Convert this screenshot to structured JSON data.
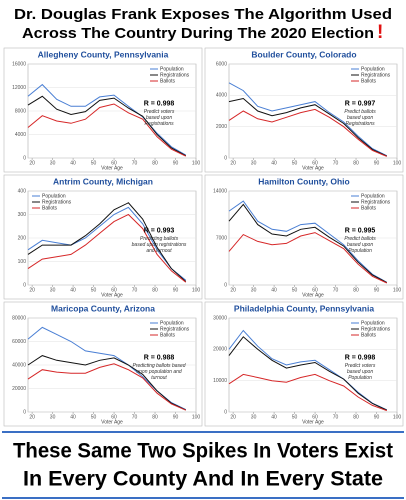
{
  "header": {
    "title_lines": [
      "Dr. Douglas Frank Exposes The Algorithm Used",
      "Across The Country During The 2020 Election"
    ],
    "exclamation": "!"
  },
  "footer": {
    "lines": [
      "These Same Two Spikes In Voters Exist",
      "In Every County And In Every State"
    ]
  },
  "chart_data": [
    {
      "type": "line",
      "title": "Allegheny County, Pennsylvania",
      "x_label": "Voter Age",
      "annotation": "R = 0.998",
      "note_lines": [
        "Predict voters",
        "based upon",
        "Registrations"
      ],
      "legend": "upper right",
      "x": [
        18,
        25,
        32,
        39,
        46,
        53,
        60,
        67,
        74,
        81,
        88,
        95
      ],
      "xlim": [
        18,
        100
      ],
      "xticks": [
        20,
        30,
        40,
        50,
        60,
        70,
        80,
        90,
        100
      ],
      "ylim": [
        0,
        16000
      ],
      "yticks": [
        0,
        4000,
        8000,
        12000,
        16000
      ],
      "series": [
        {
          "name": "Population",
          "color": "#4a7fd4",
          "values": [
            10500,
            12500,
            10000,
            8800,
            8800,
            10400,
            10700,
            8800,
            7000,
            4200,
            1900,
            500
          ]
        },
        {
          "name": "Registrations",
          "color": "#111111",
          "values": [
            9000,
            10500,
            8300,
            7400,
            7900,
            9800,
            10200,
            8500,
            7100,
            4000,
            1700,
            400
          ]
        },
        {
          "name": "Ballots",
          "color": "#d62728",
          "values": [
            5200,
            7200,
            6300,
            5900,
            6600,
            8600,
            9200,
            7700,
            6600,
            3600,
            1500,
            300
          ]
        }
      ]
    },
    {
      "type": "line",
      "title": "Boulder County, Colorado",
      "x_label": "Voter Age",
      "annotation": "R = 0.997",
      "note_lines": [
        "Predict ballots",
        "based upon",
        "Registrations"
      ],
      "legend": "upper right",
      "x": [
        18,
        25,
        32,
        39,
        46,
        53,
        60,
        67,
        74,
        81,
        88,
        95
      ],
      "xlim": [
        18,
        100
      ],
      "xticks": [
        20,
        30,
        40,
        50,
        60,
        70,
        80,
        90,
        100
      ],
      "ylim": [
        0,
        6000
      ],
      "yticks": [
        0,
        2000,
        4000,
        6000
      ],
      "series": [
        {
          "name": "Population",
          "color": "#4a7fd4",
          "values": [
            4800,
            4300,
            3300,
            3000,
            3200,
            3400,
            3600,
            2900,
            2300,
            1400,
            600,
            150
          ]
        },
        {
          "name": "Registrations",
          "color": "#111111",
          "values": [
            3600,
            3800,
            3000,
            2700,
            2900,
            3200,
            3400,
            2800,
            2200,
            1300,
            550,
            120
          ]
        },
        {
          "name": "Ballots",
          "color": "#d62728",
          "values": [
            2400,
            3000,
            2500,
            2300,
            2600,
            2900,
            3100,
            2600,
            2000,
            1200,
            480,
            100
          ]
        }
      ]
    },
    {
      "type": "line",
      "title": "Antrim County, Michigan",
      "x_label": "Voter Age",
      "annotation": "R = 0.993",
      "note_lines": [
        "Predicting ballots",
        "based upon registrations",
        "and turnout"
      ],
      "legend": "upper left",
      "x": [
        18,
        25,
        32,
        39,
        46,
        53,
        60,
        67,
        74,
        81,
        88,
        95
      ],
      "xlim": [
        18,
        100
      ],
      "xticks": [
        20,
        30,
        40,
        50,
        60,
        70,
        80,
        90,
        100
      ],
      "ylim": [
        0,
        400
      ],
      "yticks": [
        0,
        100,
        200,
        300,
        400
      ],
      "series": [
        {
          "name": "Population",
          "color": "#4a7fd4",
          "values": [
            150,
            190,
            180,
            170,
            200,
            250,
            300,
            330,
            260,
            150,
            70,
            20
          ]
        },
        {
          "name": "Registrations",
          "color": "#111111",
          "values": [
            130,
            170,
            170,
            170,
            210,
            260,
            320,
            350,
            280,
            160,
            70,
            15
          ]
        },
        {
          "name": "Ballots",
          "color": "#d62728",
          "values": [
            70,
            110,
            120,
            130,
            170,
            220,
            270,
            300,
            240,
            130,
            60,
            12
          ]
        }
      ]
    },
    {
      "type": "line",
      "title": "Hamilton County, Ohio",
      "x_label": "Voter Age",
      "annotation": "R = 0.995",
      "note_lines": [
        "Predict ballots",
        "based upon",
        "Population"
      ],
      "legend": "upper right",
      "x": [
        18,
        25,
        32,
        39,
        46,
        53,
        60,
        67,
        74,
        81,
        88,
        95
      ],
      "xlim": [
        18,
        100
      ],
      "xticks": [
        20,
        30,
        40,
        50,
        60,
        70,
        80,
        90,
        100
      ],
      "ylim": [
        0,
        14000
      ],
      "yticks": [
        0,
        7000,
        14000
      ],
      "series": [
        {
          "name": "Population",
          "color": "#4a7fd4",
          "values": [
            11000,
            12500,
            9500,
            8300,
            8000,
            9000,
            9200,
            7600,
            6000,
            3600,
            1600,
            400
          ]
        },
        {
          "name": "Registrations",
          "color": "#111111",
          "values": [
            9500,
            12000,
            9000,
            7600,
            7300,
            8300,
            8600,
            7100,
            5800,
            3400,
            1500,
            350
          ]
        },
        {
          "name": "Ballots",
          "color": "#d62728",
          "values": [
            5000,
            7500,
            6500,
            6000,
            6200,
            7300,
            7800,
            6600,
            5400,
            3100,
            1300,
            300
          ]
        }
      ]
    },
    {
      "type": "line",
      "title": "Maricopa County, Arizona",
      "x_label": "Voter Age",
      "annotation": "R = 0.988",
      "note_lines": [
        "Predicting ballots based",
        "upon population and",
        "turnout"
      ],
      "legend": "upper right",
      "x": [
        18,
        25,
        32,
        39,
        46,
        53,
        60,
        67,
        74,
        81,
        88,
        95
      ],
      "xlim": [
        18,
        100
      ],
      "xticks": [
        20,
        30,
        40,
        50,
        60,
        70,
        80,
        90,
        100
      ],
      "ylim": [
        0,
        80000
      ],
      "yticks": [
        0,
        20000,
        40000,
        60000,
        80000
      ],
      "series": [
        {
          "name": "Population",
          "color": "#4a7fd4",
          "values": [
            62000,
            72000,
            66000,
            60000,
            52000,
            50000,
            48000,
            40000,
            30000,
            18000,
            8000,
            2000
          ]
        },
        {
          "name": "Registrations",
          "color": "#111111",
          "values": [
            40000,
            48000,
            44000,
            42000,
            40000,
            44000,
            46000,
            40000,
            32000,
            18000,
            7500,
            1800
          ]
        },
        {
          "name": "Ballots",
          "color": "#d62728",
          "values": [
            28000,
            36000,
            34000,
            33000,
            33000,
            38000,
            41000,
            36000,
            29000,
            16000,
            6800,
            1500
          ]
        }
      ]
    },
    {
      "type": "line",
      "title": "Philadelphia County, Pennsylvania",
      "x_label": "Voter Age",
      "annotation": "R = 0.998",
      "note_lines": [
        "Predict voters",
        "based upon",
        "Population"
      ],
      "legend": "upper right",
      "x": [
        18,
        25,
        32,
        39,
        46,
        53,
        60,
        67,
        74,
        81,
        88,
        95
      ],
      "xlim": [
        18,
        100
      ],
      "xticks": [
        20,
        30,
        40,
        50,
        60,
        70,
        80,
        90,
        100
      ],
      "ylim": [
        0,
        30000
      ],
      "yticks": [
        0,
        10000,
        20000,
        30000
      ],
      "series": [
        {
          "name": "Population",
          "color": "#4a7fd4",
          "values": [
            20000,
            26000,
            21000,
            17000,
            15000,
            16000,
            16500,
            13500,
            10500,
            6300,
            2800,
            700
          ]
        },
        {
          "name": "Registrations",
          "color": "#111111",
          "values": [
            18000,
            24000,
            20000,
            16500,
            14000,
            15000,
            15800,
            13000,
            10500,
            6000,
            2700,
            600
          ]
        },
        {
          "name": "Ballots",
          "color": "#d62728",
          "values": [
            9000,
            12000,
            11000,
            10000,
            9500,
            11000,
            12000,
            10000,
            8300,
            4800,
            2100,
            450
          ]
        }
      ]
    }
  ]
}
